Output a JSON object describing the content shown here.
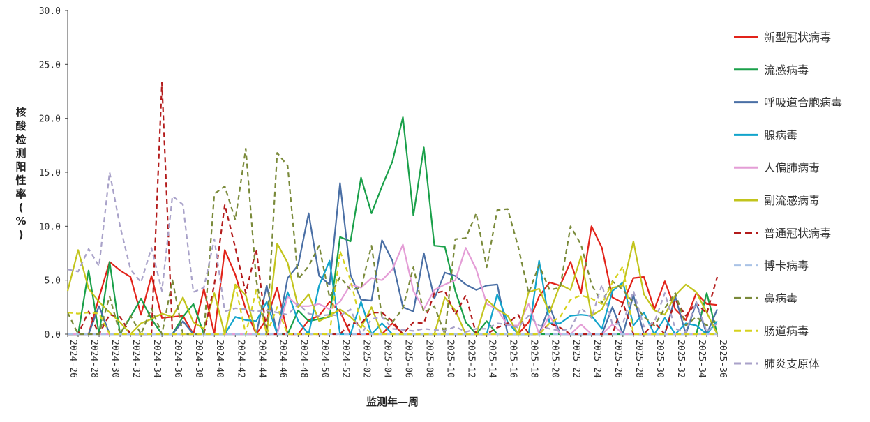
{
  "chart_data": {
    "type": "line",
    "title": "",
    "xlabel": "监测年—周",
    "ylabel": "核酸检测阳性率(%)",
    "ylim": [
      0,
      30
    ],
    "yticks": [
      "0.0",
      "5.0",
      "10.0",
      "15.0",
      "20.0",
      "25.0",
      "30.0"
    ],
    "grid": false,
    "legend_position": "right",
    "categories": [
      "2024-26",
      "2024-27",
      "2024-28",
      "2024-29",
      "2024-30",
      "2024-31",
      "2024-32",
      "2024-33",
      "2024-34",
      "2024-35",
      "2024-36",
      "2024-37",
      "2024-38",
      "2024-39",
      "2024-40",
      "2024-41",
      "2024-42",
      "2024-43",
      "2024-44",
      "2024-45",
      "2024-46",
      "2024-47",
      "2024-48",
      "2024-49",
      "2024-50",
      "2024-51",
      "2024-52",
      "2025-01",
      "2025-02",
      "2025-03",
      "2025-04",
      "2025-05",
      "2025-06",
      "2025-07",
      "2025-08",
      "2025-09",
      "2025-10",
      "2025-11",
      "2025-12",
      "2025-13",
      "2025-14",
      "2025-15",
      "2025-16",
      "2025-17",
      "2025-18",
      "2025-19",
      "2025-20",
      "2025-21",
      "2025-22",
      "2025-23",
      "2025-24",
      "2025-25",
      "2025-26",
      "2025-27",
      "2025-28",
      "2025-29",
      "2025-30",
      "2025-31",
      "2025-32",
      "2025-33",
      "2025-34",
      "2025-35",
      "2025-36"
    ],
    "xticks": [
      "2024-26",
      "2024-28",
      "2024-30",
      "2024-32",
      "2024-34",
      "2024-36",
      "2024-38",
      "2024-40",
      "2024-42",
      "2024-44",
      "2024-46",
      "2024-48",
      "2024-50",
      "2024-52",
      "2025-02",
      "2025-04",
      "2025-06",
      "2025-08",
      "2025-10",
      "2025-12",
      "2025-14",
      "2025-16",
      "2025-18",
      "2025-20",
      "2025-22",
      "2025-24",
      "2025-26",
      "2025-28",
      "2025-30",
      "2025-32",
      "2025-34",
      "2025-36"
    ],
    "series": [
      {
        "name": "新型冠状病毒",
        "color": "#e2231a",
        "dash": "solid",
        "values": [
          0.0,
          0.0,
          0.0,
          3.4,
          6.7,
          5.9,
          5.3,
          1.8,
          5.4,
          1.5,
          1.6,
          1.7,
          0.0,
          4.2,
          0.0,
          7.8,
          5.5,
          2.3,
          0.0,
          1.4,
          4.3,
          0.0,
          0.0,
          1.3,
          1.7,
          3.0,
          2.1,
          0.0,
          0.0,
          0.0,
          0.0,
          1.0,
          0.0,
          0.0,
          0.0,
          0.0,
          0.0,
          0.0,
          0.0,
          0.0,
          0.0,
          0.0,
          0.0,
          0.0,
          1.1,
          3.5,
          4.8,
          4.5,
          6.7,
          3.8,
          10.0,
          8.0,
          3.4,
          2.9,
          5.2,
          5.3,
          2.3,
          4.9,
          2.3,
          1.3,
          3.8,
          2.8,
          2.7
        ]
      },
      {
        "name": "流感病毒",
        "color": "#1aa04a",
        "dash": "solid",
        "values": [
          0.0,
          0.0,
          5.9,
          0.0,
          6.7,
          0.0,
          1.6,
          3.3,
          1.4,
          0.0,
          0.0,
          1.6,
          2.8,
          0.0,
          0.0,
          0.0,
          0.0,
          0.0,
          0.0,
          0.0,
          0.0,
          0.0,
          2.2,
          1.2,
          1.4,
          1.6,
          9.0,
          8.6,
          14.5,
          11.2,
          13.7,
          16.0,
          20.1,
          11.0,
          17.3,
          8.2,
          8.1,
          4.0,
          1.1,
          0.0,
          1.2,
          0.0,
          0.0,
          0.0,
          0.0,
          0.0,
          0.0,
          0.0,
          0.0,
          0.0,
          0.0,
          0.0,
          0.0,
          0.0,
          0.0,
          0.0,
          0.0,
          0.0,
          0.0,
          0.0,
          0.0,
          3.8,
          0.0
        ]
      },
      {
        "name": "呼吸道合胞病毒",
        "color": "#4a6fa5",
        "dash": "solid",
        "values": [
          0.0,
          0.0,
          0.0,
          2.6,
          0.0,
          0.0,
          0.0,
          0.0,
          0.0,
          0.0,
          0.0,
          1.2,
          0.0,
          0.0,
          0.0,
          0.0,
          0.0,
          0.0,
          0.0,
          4.5,
          0.0,
          5.2,
          6.4,
          11.2,
          5.4,
          4.6,
          14.0,
          5.5,
          3.2,
          3.1,
          8.7,
          6.8,
          2.5,
          2.1,
          7.5,
          3.3,
          5.7,
          5.4,
          4.6,
          4.1,
          4.5,
          4.6,
          0.0,
          0.0,
          0.0,
          0.0,
          2.6,
          0.0,
          0.0,
          0.0,
          0.0,
          0.0,
          2.5,
          0.0,
          3.6,
          0.0,
          0.0,
          0.0,
          3.5,
          0.0,
          2.9,
          0.0,
          2.3
        ]
      },
      {
        "name": "腺病毒",
        "color": "#12a4cc",
        "dash": "solid",
        "values": [
          0.0,
          0.0,
          0.0,
          0.0,
          0.0,
          0.0,
          0.0,
          0.0,
          0.0,
          0.0,
          0.0,
          0.0,
          0.0,
          0.0,
          0.0,
          0.0,
          1.6,
          1.3,
          1.2,
          3.0,
          0.0,
          3.9,
          1.2,
          0.0,
          4.5,
          6.8,
          0.0,
          0.0,
          3.0,
          0.0,
          1.0,
          0.0,
          0.0,
          0.0,
          0.0,
          0.0,
          0.0,
          0.0,
          0.0,
          0.0,
          0.0,
          3.7,
          1.1,
          0.0,
          0.0,
          6.8,
          1.0,
          1.0,
          1.7,
          1.8,
          1.7,
          0.5,
          4.0,
          4.8,
          0.8,
          2.0,
          0.0,
          1.5,
          0.0,
          1.0,
          0.8,
          0.0,
          1.2
        ]
      },
      {
        "name": "人偏肺病毒",
        "color": "#e49dd6",
        "dash": "solid",
        "values": [
          0.0,
          0.0,
          0.0,
          0.0,
          0.0,
          0.0,
          0.0,
          0.0,
          0.0,
          0.0,
          0.0,
          0.0,
          0.0,
          0.0,
          0.0,
          0.0,
          0.0,
          0.0,
          0.0,
          0.0,
          0.0,
          3.5,
          2.6,
          2.6,
          2.8,
          2.3,
          3.0,
          4.6,
          4.3,
          5.2,
          5.0,
          6.0,
          8.3,
          4.0,
          2.3,
          4.1,
          4.6,
          5.0,
          8.0,
          6.0,
          2.8,
          2.3,
          0.8,
          0.8,
          2.8,
          0.0,
          1.7,
          0.0,
          0.0,
          0.9,
          0.0,
          0.0,
          0.9,
          0.0,
          0.0,
          0.0,
          0.0,
          0.0,
          0.0,
          0.0,
          0.0,
          0.0,
          0.0
        ]
      },
      {
        "name": "副流感病毒",
        "color": "#c2c41c",
        "dash": "solid",
        "values": [
          4.0,
          7.8,
          4.2,
          3.0,
          2.0,
          1.1,
          0.0,
          1.0,
          1.4,
          1.9,
          1.6,
          3.4,
          1.1,
          0.5,
          3.8,
          0.0,
          4.6,
          3.6,
          0.0,
          0.0,
          8.4,
          6.6,
          2.5,
          3.7,
          1.2,
          1.7,
          2.3,
          1.6,
          0.6,
          2.5,
          0.0,
          0.0,
          0.0,
          0.0,
          0.0,
          0.0,
          3.4,
          2.2,
          0.0,
          0.0,
          3.2,
          2.3,
          1.7,
          0.0,
          3.9,
          4.2,
          2.0,
          4.6,
          4.1,
          7.2,
          1.7,
          2.3,
          4.3,
          4.5,
          8.6,
          3.7,
          2.2,
          1.8,
          3.6,
          4.6,
          3.9,
          2.0,
          0.0
        ]
      },
      {
        "name": "普通冠状病毒",
        "color": "#b31b1b",
        "dash": "dash",
        "values": [
          0.0,
          0.0,
          2.1,
          0.0,
          1.8,
          1.6,
          0.0,
          0.0,
          0.0,
          23.3,
          0.0,
          0.0,
          0.0,
          0.0,
          4.6,
          12.0,
          8.0,
          3.8,
          7.9,
          0.0,
          0.0,
          0.0,
          0.0,
          0.0,
          0.0,
          0.0,
          0.0,
          1.0,
          1.0,
          2.0,
          2.0,
          1.2,
          0.0,
          1.1,
          1.0,
          3.8,
          4.0,
          1.8,
          3.6,
          0.0,
          0.0,
          0.6,
          1.0,
          1.8,
          0.0,
          0.0,
          1.0,
          0.6,
          0.0,
          0.0,
          0.0,
          0.0,
          0.0,
          2.9,
          0.0,
          0.0,
          1.1,
          0.0,
          3.2,
          1.7,
          2.9,
          1.9,
          5.3
        ]
      },
      {
        "name": "博卡病毒",
        "color": "#a9c2e6",
        "dash": "dash",
        "values": [
          0.0,
          0.0,
          0.0,
          0.0,
          0.0,
          0.0,
          0.0,
          0.0,
          0.0,
          0.0,
          0.0,
          0.0,
          0.0,
          0.0,
          0.0,
          0.0,
          0.0,
          0.0,
          0.0,
          0.0,
          0.0,
          0.0,
          0.0,
          0.0,
          0.0,
          0.0,
          0.0,
          0.0,
          0.0,
          0.0,
          0.0,
          0.0,
          0.0,
          0.0,
          0.0,
          0.0,
          0.0,
          0.0,
          0.0,
          0.0,
          0.0,
          0.0,
          0.0,
          0.0,
          0.0,
          0.0,
          0.0,
          0.0,
          0.0,
          0.0,
          0.0,
          0.0,
          0.0,
          0.0,
          0.0,
          0.0,
          0.0,
          0.0,
          0.0,
          0.0,
          0.0,
          0.0,
          0.0
        ]
      },
      {
        "name": "鼻病毒",
        "color": "#7a8a3a",
        "dash": "dash",
        "values": [
          2.0,
          0.0,
          0.0,
          0.0,
          3.5,
          0.0,
          1.7,
          0.0,
          2.4,
          0.0,
          5.0,
          0.0,
          0.0,
          0.0,
          13.0,
          13.7,
          10.6,
          17.2,
          5.0,
          0.0,
          16.8,
          15.6,
          5.1,
          6.3,
          8.2,
          3.4,
          5.3,
          4.1,
          4.3,
          8.2,
          1.6,
          1.1,
          2.4,
          6.2,
          2.0,
          2.6,
          0.0,
          8.8,
          8.9,
          11.2,
          6.2,
          11.5,
          11.6,
          8.1,
          3.8,
          6.4,
          4.1,
          4.3,
          10.0,
          8.3,
          4.6,
          2.9,
          4.9,
          4.1,
          2.9,
          1.6,
          0.8,
          2.4,
          3.8,
          0.8,
          1.6,
          0.8,
          1.3
        ]
      },
      {
        "name": "肠道病毒",
        "color": "#d6d21e",
        "dash": "dash",
        "values": [
          2.0,
          1.9,
          2.0,
          1.9,
          0.0,
          0.0,
          0.0,
          0.0,
          0.0,
          0.0,
          0.0,
          0.0,
          0.0,
          0.0,
          0.0,
          0.0,
          4.5,
          0.0,
          4.1,
          0.0,
          2.5,
          0.0,
          0.0,
          0.0,
          0.0,
          0.0,
          7.7,
          5.0,
          1.0,
          0.0,
          0.0,
          0.0,
          0.0,
          0.0,
          0.0,
          0.0,
          0.0,
          0.0,
          0.0,
          0.0,
          0.0,
          0.0,
          0.0,
          0.0,
          0.0,
          0.0,
          1.0,
          1.6,
          3.2,
          3.6,
          3.3,
          2.8,
          4.8,
          6.3,
          0.0,
          0.0,
          0.0,
          0.0,
          0.0,
          0.0,
          0.0,
          0.0,
          0.0
        ]
      },
      {
        "name": "肺炎支原体",
        "color": "#a9a2c9",
        "dash": "dash",
        "values": [
          6.0,
          5.8,
          7.9,
          6.3,
          15.0,
          10.0,
          6.0,
          4.8,
          8.0,
          4.0,
          12.8,
          12.0,
          3.9,
          4.3,
          8.8,
          2.1,
          2.4,
          2.3,
          2.1,
          2.2,
          2.0,
          1.8,
          2.8,
          1.9,
          1.7,
          1.8,
          1.7,
          2.3,
          0.0,
          1.4,
          1.6,
          0.5,
          0.4,
          0.3,
          0.5,
          0.4,
          0.3,
          0.7,
          0.2,
          0.5,
          0.5,
          1.0,
          0.9,
          0.6,
          1.7,
          0.8,
          0.5,
          0.3,
          0.5,
          2.4,
          1.5,
          4.6,
          0.9,
          1.0,
          4.0,
          0.7,
          1.1,
          3.8,
          0.5,
          0.2,
          3.0,
          0.2,
          1.0
        ]
      }
    ]
  }
}
